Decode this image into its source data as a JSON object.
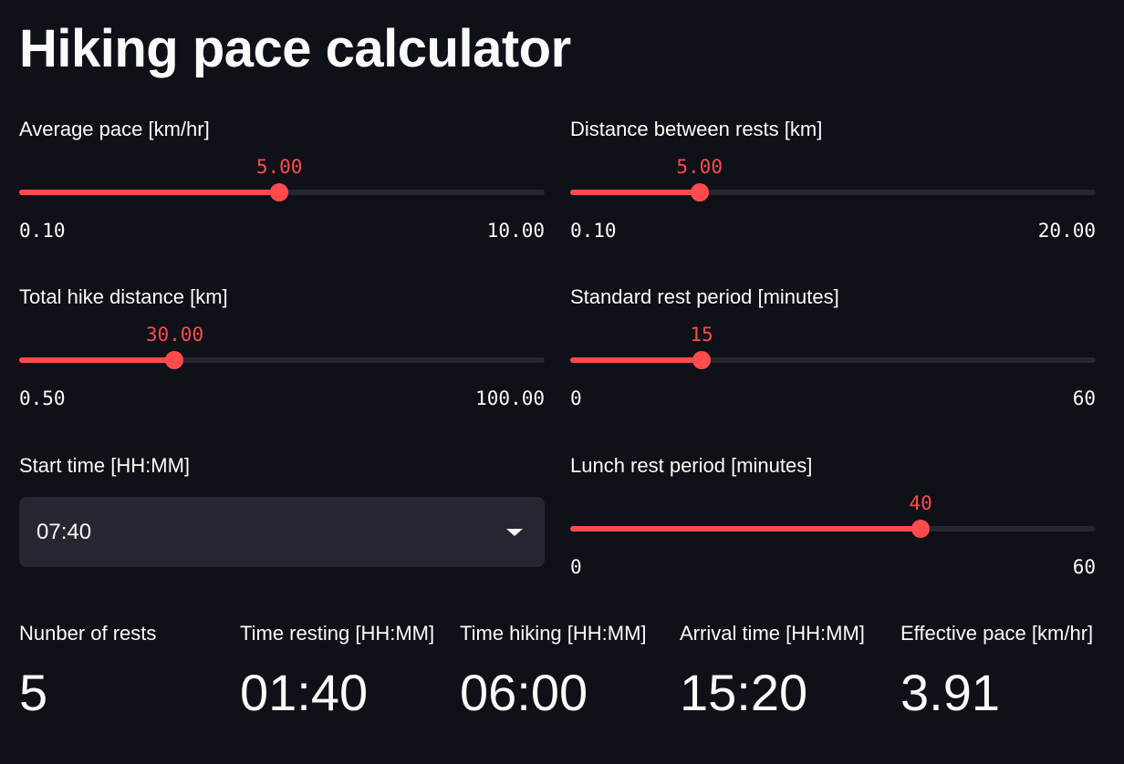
{
  "title": "Hiking pace calculator",
  "accent_color": "#ff4b4b",
  "sliders": [
    {
      "label": "Average pace [km/hr]",
      "value": "5.00",
      "min": "0.10",
      "max": "10.00",
      "fraction": 0.495
    },
    {
      "label": "Distance between rests [km]",
      "value": "5.00",
      "min": "0.10",
      "max": "20.00",
      "fraction": 0.246
    },
    {
      "label": "Total hike distance [km]",
      "value": "30.00",
      "min": "0.50",
      "max": "100.00",
      "fraction": 0.296
    },
    {
      "label": "Standard rest period [minutes]",
      "value": "15",
      "min": "0",
      "max": "60",
      "fraction": 0.25
    },
    {
      "label": "Lunch rest period [minutes]",
      "value": "40",
      "min": "0",
      "max": "60",
      "fraction": 0.667
    }
  ],
  "start_time": {
    "label": "Start time [HH:MM]",
    "value": "07:40",
    "icon": "chevron-down-icon"
  },
  "metrics": [
    {
      "label": "Nunber of rests",
      "value": "5"
    },
    {
      "label": "Time resting [HH:MM]",
      "value": "01:40"
    },
    {
      "label": "Time hiking [HH:MM]",
      "value": "06:00"
    },
    {
      "label": "Arrival time [HH:MM]",
      "value": "15:20"
    },
    {
      "label": "Effective pace [km/hr]",
      "value": "3.91"
    }
  ]
}
